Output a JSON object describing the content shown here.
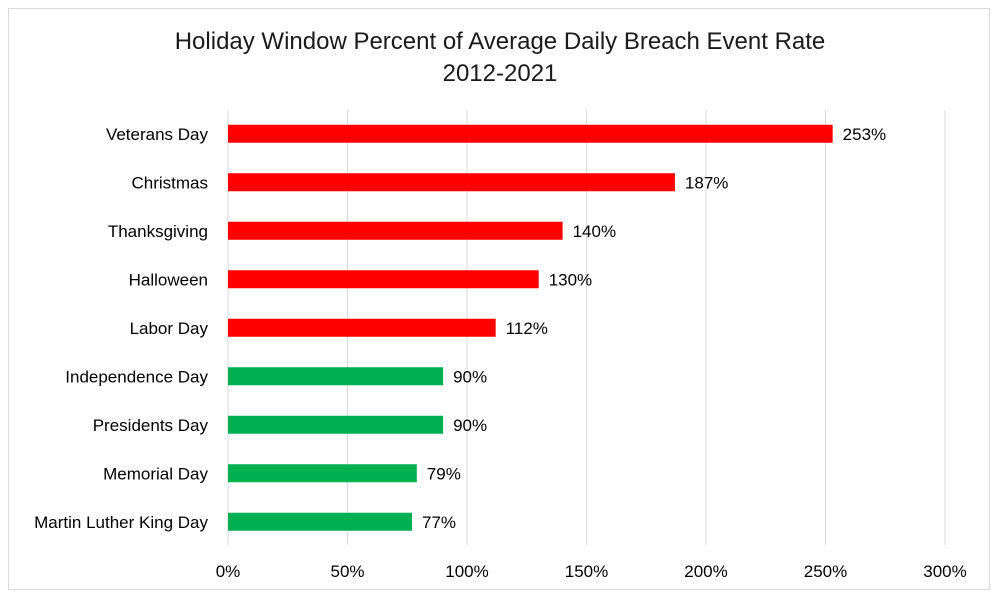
{
  "chart_data": {
    "type": "bar",
    "orientation": "horizontal",
    "title_line1": "Holiday Window Percent of Average Daily Breach Event Rate",
    "title_line2": "2012-2021",
    "categories": [
      "Veterans Day",
      "Christmas",
      "Thanksgiving",
      "Halloween",
      "Labor Day",
      "Independence Day",
      "Presidents Day",
      "Memorial Day",
      "Martin Luther King Day"
    ],
    "values": [
      253,
      187,
      140,
      130,
      112,
      90,
      90,
      79,
      77
    ],
    "data_labels": [
      "253%",
      "187%",
      "140%",
      "130%",
      "112%",
      "90%",
      "90%",
      "79%",
      "77%"
    ],
    "bar_colors": [
      "#ff0000",
      "#ff0000",
      "#ff0000",
      "#ff0000",
      "#ff0000",
      "#00b050",
      "#00b050",
      "#00b050",
      "#00b050"
    ],
    "x_ticks": [
      0,
      50,
      100,
      150,
      200,
      250,
      300
    ],
    "x_tick_labels": [
      "0%",
      "50%",
      "100%",
      "150%",
      "200%",
      "250%",
      "300%"
    ],
    "xlim": [
      0,
      300
    ],
    "grid": "vertical",
    "legend": "none"
  }
}
